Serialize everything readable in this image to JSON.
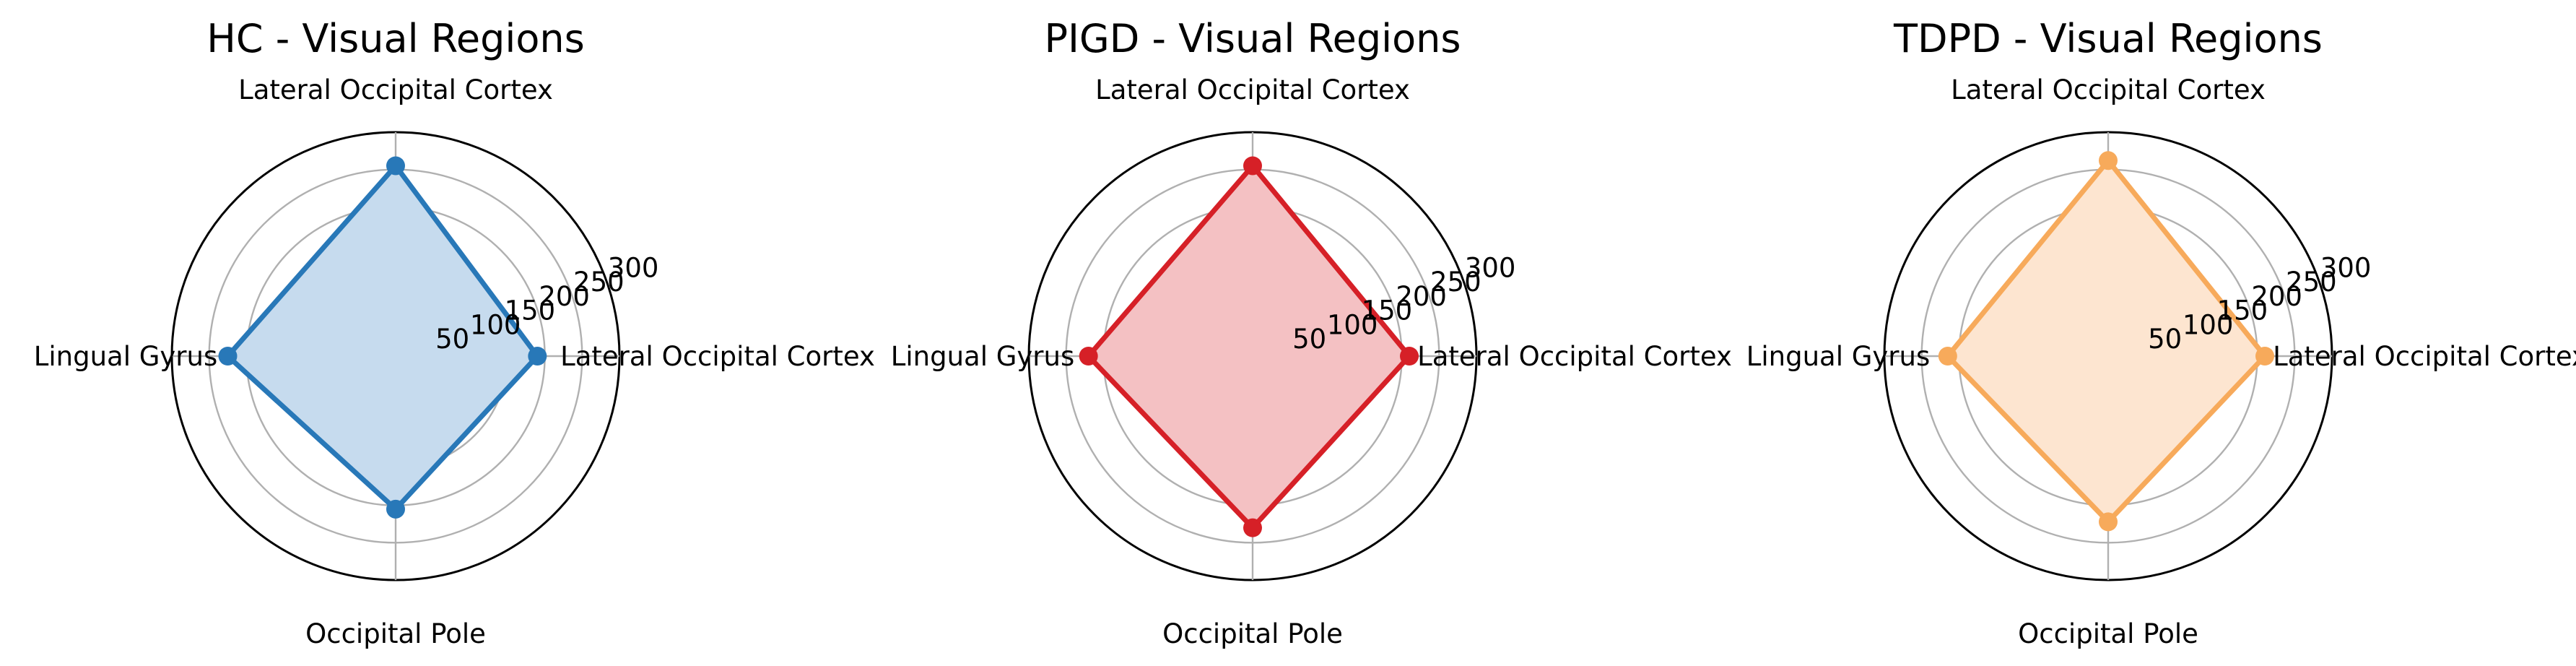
{
  "chart_data": [
    {
      "type": "radar",
      "title": "HC - Visual Regions",
      "categories": [
        "Lateral Occipital Cortex",
        "Lateral Occipital Cortex",
        "Lingual Gyrus",
        "Occipital Pole"
      ],
      "values": [
        190,
        255,
        225,
        205
      ],
      "rlim": [
        0,
        300
      ],
      "rticks": [
        50,
        100,
        150,
        200,
        250,
        300
      ],
      "color": "#2878b8",
      "fill_color": "#c6dbee",
      "grid": true
    },
    {
      "type": "radar",
      "title": "PIGD - Visual Regions",
      "categories": [
        "Lateral Occipital Cortex",
        "Lateral Occipital Cortex",
        "Lingual Gyrus",
        "Occipital Pole"
      ],
      "values": [
        210,
        255,
        220,
        230
      ],
      "rlim": [
        0,
        300
      ],
      "rticks": [
        50,
        100,
        150,
        200,
        250,
        300
      ],
      "color": "#d62027",
      "fill_color": "#f4c1c3",
      "grid": true
    },
    {
      "type": "radar",
      "title": "TDPD - Visual Regions",
      "categories": [
        "Lateral Occipital Cortex",
        "Lateral Occipital Cortex",
        "Lingual Gyrus",
        "Occipital Pole"
      ],
      "values": [
        210,
        262,
        215,
        222
      ],
      "rlim": [
        0,
        300
      ],
      "rticks": [
        50,
        100,
        150,
        200,
        250,
        300
      ],
      "color": "#f7aa5b",
      "fill_color": "#fde5d0",
      "grid": true
    }
  ]
}
